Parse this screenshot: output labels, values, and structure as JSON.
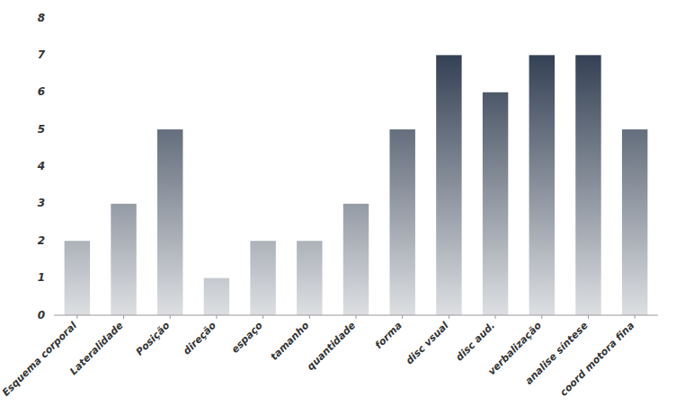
{
  "chart_data": {
    "type": "bar",
    "categories": [
      "Esquema corporal",
      "Lateralidade",
      "Posição",
      "direção",
      "espaço",
      "tamanho",
      "quantidade",
      "forma",
      "disc vsual",
      "disc aud.",
      "verbalização",
      "analise síntese",
      "coord motora fina"
    ],
    "values": [
      2,
      3,
      5,
      1,
      2,
      2,
      3,
      5,
      7,
      6,
      7,
      7,
      5
    ],
    "color": "#1c2a40",
    "ylim": [
      0,
      8
    ],
    "yticks": [
      0,
      1,
      2,
      3,
      4,
      5,
      6,
      7,
      8
    ],
    "grid": false
  }
}
